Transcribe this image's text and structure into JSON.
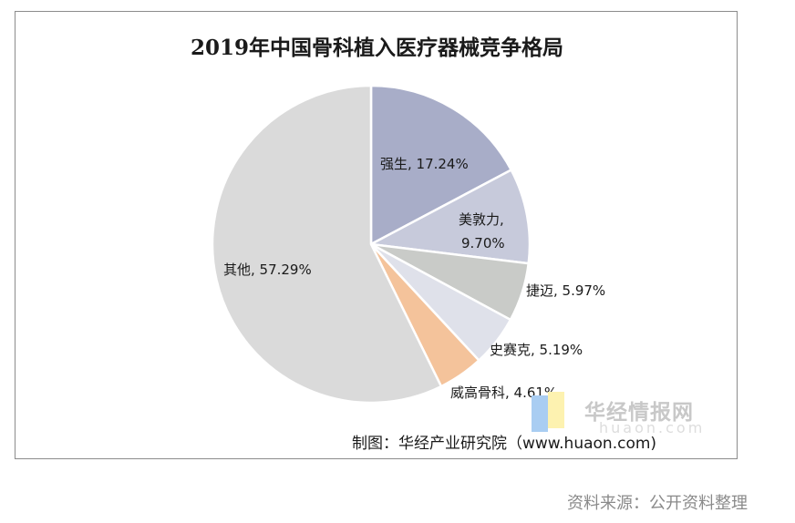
{
  "chart_data": {
    "type": "pie",
    "title": "2019年中国骨科植入医疗器械竞争格局",
    "slices": [
      {
        "name": "强生",
        "value": 17.24,
        "label": "强生, 17.24%",
        "color": "#a8adc8"
      },
      {
        "name": "美敦力",
        "value": 9.7,
        "label_lines": [
          "美敦力,",
          "9.70%"
        ],
        "color": "#c7cadb"
      },
      {
        "name": "捷迈",
        "value": 5.97,
        "label": "捷迈, 5.97%",
        "color": "#c9cbc8"
      },
      {
        "name": "史赛克",
        "value": 5.19,
        "label": "史赛克, 5.19%",
        "color": "#dfe1ea"
      },
      {
        "name": "威高骨科",
        "value": 4.61,
        "label": "威高骨科, 4.61%",
        "color": "#f4c39b"
      },
      {
        "name": "其他",
        "value": 57.29,
        "label": "其他, 57.29%",
        "color": "#dadada"
      }
    ]
  },
  "credit": "制图：华经产业研究院（www.huaon.com)",
  "watermark": {
    "text": "华经情报网",
    "url": "huaon.com"
  },
  "source": "资料来源：公开资料整理"
}
